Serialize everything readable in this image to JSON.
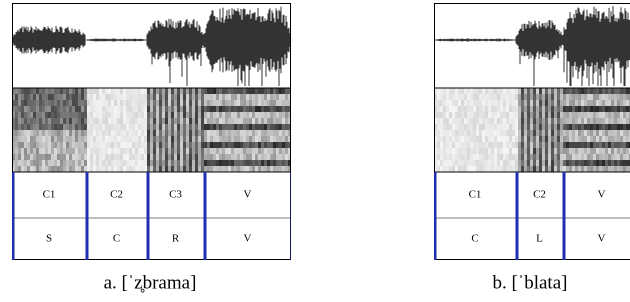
{
  "panels": [
    {
      "caption": "a. [ˈz̥brama]",
      "tier1": [
        "C1",
        "C2",
        "C3",
        "V"
      ],
      "tier2": [
        "S",
        "C",
        "R",
        "V"
      ]
    },
    {
      "caption": "b. [ˈblata]",
      "tier1": [
        "C1",
        "C2",
        "V"
      ],
      "tier2": [
        "C",
        "L",
        "V"
      ]
    }
  ]
}
